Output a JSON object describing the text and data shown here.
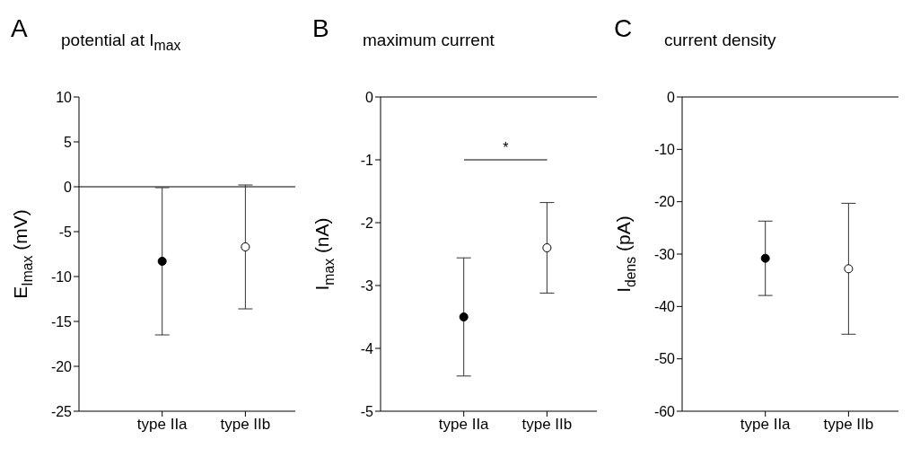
{
  "chart_data": [
    {
      "type": "scatter",
      "title": "potential at I$_{max}$",
      "ylabel": "E$_{Imax}$ (mV)",
      "annotations": [
        "A"
      ],
      "categories": [
        "type IIa",
        "type IIb"
      ],
      "series": [
        {
          "color": "#000000",
          "values": [
            -8.3,
            null
          ],
          "errors": [
            8.2,
            null
          ]
        },
        {
          "color": "#ffffff",
          "values": [
            null,
            -6.7
          ],
          "errors": [
            null,
            6.9
          ]
        }
      ],
      "ylim": [
        -25,
        10
      ],
      "yticks": [
        -25,
        -20,
        -15,
        -10,
        -5,
        0,
        5,
        10
      ],
      "ref_lines": [
        {
          "axis": "y",
          "value": 0
        }
      ],
      "marker": "circle",
      "grid": false
    },
    {
      "type": "scatter",
      "title": "maximum current",
      "ylabel": "I$_{max}$ (nA)",
      "annotations": [
        "B",
        "*"
      ],
      "categories": [
        "type IIa",
        "type IIb"
      ],
      "series": [
        {
          "color": "#000000",
          "values": [
            -3.5,
            null
          ],
          "errors": [
            0.94,
            null
          ]
        },
        {
          "color": "#ffffff",
          "values": [
            null,
            -2.4
          ],
          "errors": [
            null,
            0.72
          ]
        }
      ],
      "ylim": [
        -5,
        0
      ],
      "yticks": [
        -5,
        -4,
        -3,
        -2,
        -1,
        0
      ],
      "ref_lines": [
        {
          "axis": "y",
          "value": 0
        }
      ],
      "marker": "circle",
      "grid": false
    },
    {
      "type": "scatter",
      "title": "current density",
      "ylabel": "I$_{dens}$ (pA)",
      "annotations": [
        "C"
      ],
      "categories": [
        "type IIa",
        "type IIb"
      ],
      "series": [
        {
          "color": "#000000",
          "values": [
            -30.8,
            null
          ],
          "errors": [
            7.1,
            null
          ]
        },
        {
          "color": "#ffffff",
          "values": [
            null,
            -32.8
          ],
          "errors": [
            null,
            12.5
          ]
        }
      ],
      "ylim": [
        -60,
        0
      ],
      "yticks": [
        -60,
        -50,
        -40,
        -30,
        -20,
        -10,
        0
      ],
      "ref_lines": [
        {
          "axis": "y",
          "value": 0
        }
      ],
      "marker": "circle",
      "grid": false
    }
  ]
}
